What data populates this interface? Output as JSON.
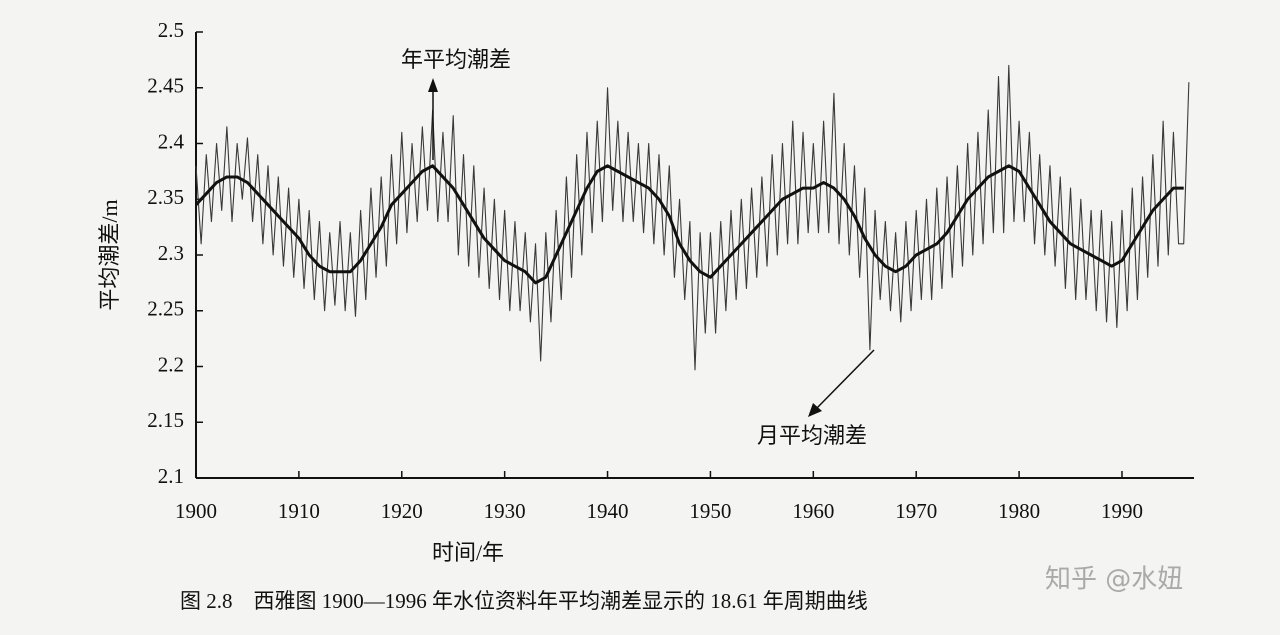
{
  "chart_data": {
    "type": "line",
    "caption": "图 2.8　西雅图 1900—1996 年水位资料年平均潮差显示的 18.61 年周期曲线",
    "watermark": "知乎 @水妞",
    "x_label": "时间/年",
    "y_label": "平均潮差/m",
    "annotations": [
      "年平均潮差",
      "月平均潮差"
    ],
    "xlim": [
      1900,
      1997
    ],
    "ylim": [
      2.1,
      2.5
    ],
    "xticks": [
      1900,
      1910,
      1920,
      1930,
      1940,
      1950,
      1960,
      1970,
      1980,
      1990
    ],
    "yticks": [
      2.1,
      2.15,
      2.2,
      2.25,
      2.3,
      2.35,
      2.4,
      2.45,
      2.5
    ],
    "series": [
      {
        "name": "月平均潮差",
        "color": "#3a3a3a",
        "x": [
          1900,
          1900.5,
          1901,
          1901.5,
          1902,
          1902.5,
          1903,
          1903.5,
          1904,
          1904.5,
          1905,
          1905.5,
          1906,
          1906.5,
          1907,
          1907.5,
          1908,
          1908.5,
          1909,
          1909.5,
          1910,
          1910.5,
          1911,
          1911.5,
          1912,
          1912.5,
          1913,
          1913.5,
          1914,
          1914.5,
          1915,
          1915.5,
          1916,
          1916.5,
          1917,
          1917.5,
          1918,
          1918.5,
          1919,
          1919.5,
          1920,
          1920.5,
          1921,
          1921.5,
          1922,
          1922.5,
          1923,
          1923.5,
          1924,
          1924.5,
          1925,
          1925.5,
          1926,
          1926.5,
          1927,
          1927.5,
          1928,
          1928.5,
          1929,
          1929.5,
          1930,
          1930.5,
          1931,
          1931.5,
          1932,
          1932.5,
          1933,
          1933.5,
          1934,
          1934.5,
          1935,
          1935.5,
          1936,
          1936.5,
          1937,
          1937.5,
          1938,
          1938.5,
          1939,
          1939.5,
          1940,
          1940.5,
          1941,
          1941.5,
          1942,
          1942.5,
          1943,
          1943.5,
          1944,
          1944.5,
          1945,
          1945.5,
          1946,
          1946.5,
          1947,
          1947.5,
          1948,
          1948.5,
          1949,
          1949.5,
          1950,
          1950.5,
          1951,
          1951.5,
          1952,
          1952.5,
          1953,
          1953.5,
          1954,
          1954.5,
          1955,
          1955.5,
          1956,
          1956.5,
          1957,
          1957.5,
          1958,
          1958.5,
          1959,
          1959.5,
          1960,
          1960.5,
          1961,
          1961.5,
          1962,
          1962.5,
          1963,
          1963.5,
          1964,
          1964.5,
          1965,
          1965.5,
          1966,
          1966.5,
          1967,
          1967.5,
          1968,
          1968.5,
          1969,
          1969.5,
          1970,
          1970.5,
          1971,
          1971.5,
          1972,
          1972.5,
          1973,
          1973.5,
          1974,
          1974.5,
          1975,
          1975.5,
          1976,
          1976.5,
          1977,
          1977.5,
          1978,
          1978.5,
          1979,
          1979.5,
          1980,
          1980.5,
          1981,
          1981.5,
          1982,
          1982.5,
          1983,
          1983.5,
          1984,
          1984.5,
          1985,
          1985.5,
          1986,
          1986.5,
          1987,
          1987.5,
          1988,
          1988.5,
          1989,
          1989.5,
          1990,
          1990.5,
          1991,
          1991.5,
          1992,
          1992.5,
          1993,
          1993.5,
          1994,
          1994.5,
          1995,
          1995.5,
          1996,
          1996.5
        ],
        "values": [
          2.38,
          2.31,
          2.39,
          2.33,
          2.4,
          2.34,
          2.415,
          2.33,
          2.4,
          2.35,
          2.405,
          2.33,
          2.39,
          2.31,
          2.38,
          2.3,
          2.37,
          2.29,
          2.36,
          2.28,
          2.35,
          2.27,
          2.34,
          2.26,
          2.33,
          2.25,
          2.32,
          2.255,
          2.33,
          2.25,
          2.32,
          2.245,
          2.34,
          2.26,
          2.36,
          2.28,
          2.37,
          2.29,
          2.39,
          2.31,
          2.41,
          2.32,
          2.4,
          2.33,
          2.415,
          2.34,
          2.43,
          2.33,
          2.41,
          2.33,
          2.425,
          2.3,
          2.39,
          2.29,
          2.38,
          2.28,
          2.36,
          2.27,
          2.35,
          2.26,
          2.34,
          2.25,
          2.33,
          2.25,
          2.32,
          2.24,
          2.31,
          2.205,
          2.32,
          2.24,
          2.34,
          2.26,
          2.37,
          2.28,
          2.39,
          2.3,
          2.41,
          2.32,
          2.42,
          2.33,
          2.45,
          2.34,
          2.42,
          2.33,
          2.41,
          2.33,
          2.4,
          2.32,
          2.4,
          2.31,
          2.39,
          2.3,
          2.38,
          2.28,
          2.35,
          2.26,
          2.33,
          2.197,
          2.32,
          2.23,
          2.32,
          2.23,
          2.33,
          2.25,
          2.34,
          2.26,
          2.35,
          2.27,
          2.36,
          2.28,
          2.37,
          2.29,
          2.39,
          2.3,
          2.4,
          2.31,
          2.42,
          2.31,
          2.41,
          2.32,
          2.4,
          2.32,
          2.42,
          2.32,
          2.445,
          2.31,
          2.4,
          2.3,
          2.38,
          2.28,
          2.36,
          2.215,
          2.34,
          2.26,
          2.33,
          2.25,
          2.32,
          2.24,
          2.33,
          2.25,
          2.34,
          2.26,
          2.35,
          2.26,
          2.36,
          2.27,
          2.37,
          2.28,
          2.38,
          2.29,
          2.4,
          2.3,
          2.41,
          2.31,
          2.43,
          2.32,
          2.46,
          2.32,
          2.47,
          2.33,
          2.42,
          2.33,
          2.41,
          2.31,
          2.39,
          2.3,
          2.38,
          2.29,
          2.37,
          2.27,
          2.36,
          2.26,
          2.35,
          2.26,
          2.34,
          2.25,
          2.34,
          2.24,
          2.33,
          2.235,
          2.34,
          2.25,
          2.36,
          2.26,
          2.37,
          2.28,
          2.39,
          2.29,
          2.42,
          2.3,
          2.41,
          2.31,
          2.31,
          2.455
        ]
      },
      {
        "name": "年平均潮差",
        "color": "#111111",
        "x": [
          1900,
          1901,
          1902,
          1903,
          1904,
          1905,
          1906,
          1907,
          1908,
          1909,
          1910,
          1911,
          1912,
          1913,
          1914,
          1915,
          1916,
          1917,
          1918,
          1919,
          1920,
          1921,
          1922,
          1923,
          1924,
          1925,
          1926,
          1927,
          1928,
          1929,
          1930,
          1931,
          1932,
          1933,
          1934,
          1935,
          1936,
          1937,
          1938,
          1939,
          1940,
          1941,
          1942,
          1943,
          1944,
          1945,
          1946,
          1947,
          1948,
          1949,
          1950,
          1951,
          1952,
          1953,
          1954,
          1955,
          1956,
          1957,
          1958,
          1959,
          1960,
          1961,
          1962,
          1963,
          1964,
          1965,
          1966,
          1967,
          1968,
          1969,
          1970,
          1971,
          1972,
          1973,
          1974,
          1975,
          1976,
          1977,
          1978,
          1979,
          1980,
          1981,
          1982,
          1983,
          1984,
          1985,
          1986,
          1987,
          1988,
          1989,
          1990,
          1991,
          1992,
          1993,
          1994,
          1995,
          1996
        ],
        "values": [
          2.345,
          2.355,
          2.365,
          2.37,
          2.37,
          2.365,
          2.355,
          2.345,
          2.335,
          2.325,
          2.315,
          2.3,
          2.29,
          2.285,
          2.285,
          2.285,
          2.295,
          2.31,
          2.325,
          2.345,
          2.355,
          2.365,
          2.375,
          2.38,
          2.37,
          2.36,
          2.345,
          2.33,
          2.315,
          2.305,
          2.295,
          2.29,
          2.285,
          2.275,
          2.28,
          2.3,
          2.32,
          2.34,
          2.36,
          2.375,
          2.38,
          2.375,
          2.37,
          2.365,
          2.36,
          2.35,
          2.335,
          2.31,
          2.295,
          2.285,
          2.28,
          2.29,
          2.3,
          2.31,
          2.32,
          2.33,
          2.34,
          2.35,
          2.355,
          2.36,
          2.36,
          2.365,
          2.36,
          2.35,
          2.335,
          2.315,
          2.3,
          2.29,
          2.285,
          2.29,
          2.3,
          2.305,
          2.31,
          2.32,
          2.335,
          2.35,
          2.36,
          2.37,
          2.375,
          2.38,
          2.375,
          2.36,
          2.345,
          2.33,
          2.32,
          2.31,
          2.305,
          2.3,
          2.295,
          2.29,
          2.295,
          2.31,
          2.325,
          2.34,
          2.35,
          2.36,
          2.36
        ]
      }
    ]
  }
}
